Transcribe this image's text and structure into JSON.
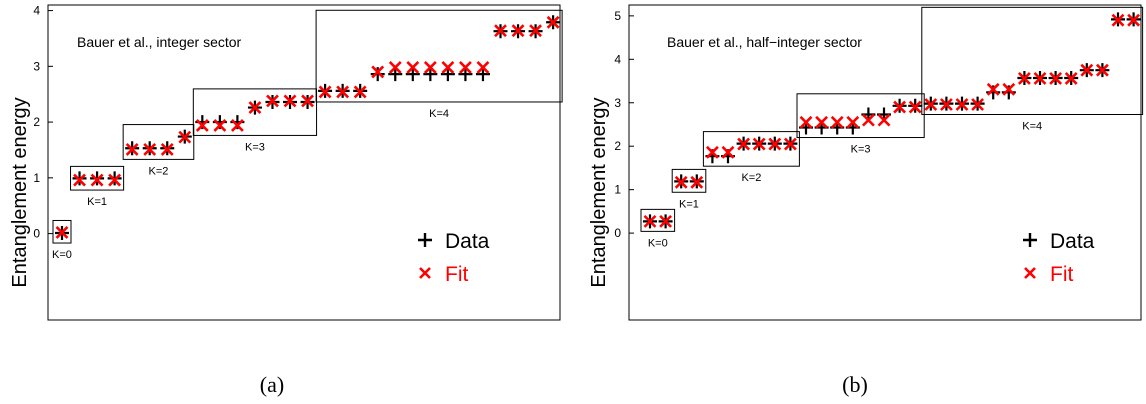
{
  "chart_data": [
    {
      "type": "scatter",
      "panel_label": "(a)",
      "annotation": "Bauer et al., integer sector",
      "ylabel": "Entanglement energy",
      "xlabel": "",
      "ylim": [
        -1.55,
        4.1
      ],
      "yticks": [
        "0",
        "1",
        "2",
        "3",
        "4"
      ],
      "grid": false,
      "legend_position": "lower-right",
      "series": [
        {
          "name": "Data",
          "marker": "plus",
          "color": "#000000"
        },
        {
          "name": "Fit",
          "marker": "cross",
          "color": "#ff0000"
        }
      ],
      "groups": [
        {
          "label": "K=0",
          "x": [
            1
          ],
          "data": [
            0.01
          ],
          "fit": [
            0.02
          ]
        },
        {
          "label": "K=1",
          "x": [
            2,
            3,
            4
          ],
          "data": [
            0.99,
            0.99,
            0.99
          ],
          "fit": [
            0.96,
            0.96,
            0.96
          ]
        },
        {
          "label": "K=2",
          "x": [
            5,
            6,
            7,
            8
          ],
          "data": [
            1.53,
            1.53,
            1.53,
            1.74
          ],
          "fit": [
            1.51,
            1.51,
            1.51,
            1.73
          ]
        },
        {
          "label": "K=3",
          "x": [
            9,
            10,
            11,
            12,
            13,
            14,
            15
          ],
          "data": [
            2.0,
            2.0,
            2.0,
            2.26,
            2.36,
            2.36,
            2.36
          ],
          "fit": [
            1.94,
            1.94,
            1.94,
            2.26,
            2.38,
            2.38,
            2.38
          ]
        },
        {
          "label": "K=4",
          "x": [
            16,
            17,
            18,
            19,
            20,
            21,
            22,
            23,
            24,
            25,
            26,
            27,
            28,
            29
          ],
          "data": [
            2.56,
            2.56,
            2.56,
            2.86,
            2.86,
            2.86,
            2.86,
            2.86,
            2.86,
            2.86,
            3.63,
            3.63,
            3.63,
            3.79
          ],
          "fit": [
            2.54,
            2.54,
            2.54,
            2.9,
            2.98,
            2.98,
            2.98,
            2.98,
            2.98,
            2.98,
            3.64,
            3.64,
            3.64,
            3.79
          ]
        }
      ]
    },
    {
      "type": "scatter",
      "panel_label": "(b)",
      "annotation": "Bauer et al., half−integer sector",
      "ylabel": "Entanglement energy",
      "xlabel": "",
      "ylim": [
        -2.0,
        5.25
      ],
      "yticks": [
        "0",
        "1",
        "2",
        "3",
        "4",
        "5"
      ],
      "grid": false,
      "legend_position": "lower-right",
      "series": [
        {
          "name": "Data",
          "marker": "plus",
          "color": "#000000"
        },
        {
          "name": "Fit",
          "marker": "cross",
          "color": "#ff0000"
        }
      ],
      "groups": [
        {
          "label": "K=0",
          "x": [
            1,
            2
          ],
          "data": [
            0.27,
            0.27
          ],
          "fit": [
            0.27,
            0.27
          ]
        },
        {
          "label": "K=1",
          "x": [
            3,
            4
          ],
          "data": [
            1.19,
            1.19
          ],
          "fit": [
            1.17,
            1.17
          ]
        },
        {
          "label": "K=2",
          "x": [
            5,
            6,
            7,
            8,
            9,
            10
          ],
          "data": [
            1.77,
            1.77,
            2.06,
            2.06,
            2.06,
            2.06
          ],
          "fit": [
            1.86,
            1.86,
            2.05,
            2.05,
            2.05,
            2.05
          ]
        },
        {
          "label": "K=3",
          "x": [
            11,
            12,
            13,
            14,
            15,
            16,
            17,
            18
          ],
          "data": [
            2.43,
            2.43,
            2.43,
            2.43,
            2.73,
            2.73,
            2.93,
            2.93
          ],
          "fit": [
            2.55,
            2.55,
            2.55,
            2.55,
            2.6,
            2.6,
            2.9,
            2.9
          ]
        },
        {
          "label": "K=4",
          "x": [
            19,
            20,
            21,
            22,
            23,
            24,
            25,
            26,
            27,
            28,
            29,
            30,
            31,
            32
          ],
          "data": [
            2.98,
            2.98,
            2.98,
            2.98,
            3.24,
            3.24,
            3.57,
            3.57,
            3.57,
            3.57,
            3.75,
            3.75,
            4.92,
            4.92
          ],
          "fit": [
            2.96,
            2.96,
            2.96,
            2.96,
            3.31,
            3.31,
            3.56,
            3.56,
            3.56,
            3.56,
            3.75,
            3.75,
            4.9,
            4.9
          ]
        }
      ]
    }
  ]
}
